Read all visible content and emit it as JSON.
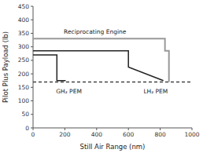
{
  "chart_data": {
    "type": "line",
    "xlabel": "Still Air Range (nm)",
    "ylabel": "Pilot Plus Payload (lb)",
    "xlim": [
      0,
      1000
    ],
    "ylim": [
      0,
      450
    ],
    "xticks": [
      0,
      200,
      400,
      600,
      800,
      1000
    ],
    "yticks": [
      0,
      50,
      100,
      150,
      200,
      250,
      300,
      350,
      400,
      450
    ],
    "grid": false,
    "series": [
      {
        "color": "#444444",
        "line_style": "dashed",
        "x": [
          0,
          1000
        ],
        "values": [
          170,
          170
        ]
      },
      {
        "color": "#999999",
        "line_style": "solid",
        "x": [
          0,
          830,
          830,
          855,
          855
        ],
        "values": [
          330,
          330,
          285,
          285,
          170
        ]
      },
      {
        "color": "#222222",
        "line_style": "solid",
        "x": [
          0,
          150,
          150,
          205
        ],
        "values": [
          270,
          270,
          175,
          175
        ]
      },
      {
        "color": "#222222",
        "line_style": "solid",
        "x": [
          0,
          600,
          600,
          820,
          820
        ],
        "values": [
          285,
          285,
          225,
          175,
          175
        ]
      }
    ],
    "annotations": [
      {
        "text": "Reciprocating Engine",
        "x": 390,
        "y": 342
      },
      {
        "text": "GH₂ PEM",
        "x": 145,
        "y": 148
      },
      {
        "text": "LH₂ PEM",
        "x": 695,
        "y": 148
      }
    ]
  }
}
